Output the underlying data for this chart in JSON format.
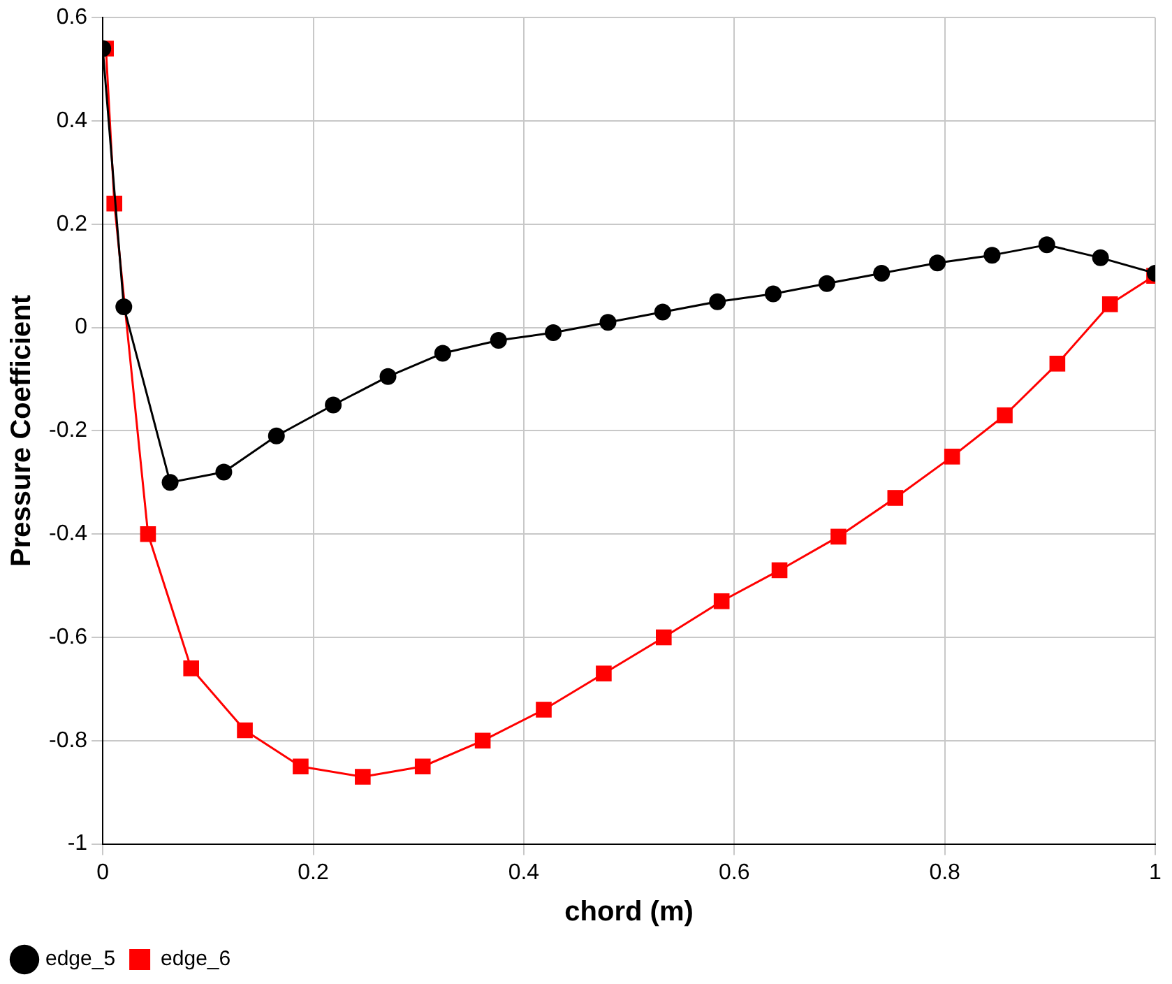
{
  "chart_data": {
    "type": "line",
    "xlabel": "chord (m)",
    "ylabel": "Pressure Coefficient",
    "xlim": [
      0,
      1
    ],
    "ylim": [
      -1,
      0.6
    ],
    "xticks": [
      0,
      0.2,
      0.4,
      0.6,
      0.8,
      1
    ],
    "yticks": [
      -1,
      -0.8,
      -0.6,
      -0.4,
      -0.2,
      0,
      0.2,
      0.4,
      0.6
    ],
    "grid": true,
    "legend": "bottom left",
    "series": [
      {
        "name": "edge_5",
        "color": "#000000",
        "marker": "circle",
        "x": [
          0,
          0.02,
          0.064,
          0.115,
          0.165,
          0.219,
          0.271,
          0.323,
          0.376,
          0.428,
          0.48,
          0.532,
          0.584,
          0.637,
          0.688,
          0.74,
          0.793,
          0.845,
          0.897,
          0.948,
          1.0
        ],
        "values": [
          0.54,
          0.04,
          -0.3,
          -0.28,
          -0.21,
          -0.15,
          -0.095,
          -0.05,
          -0.025,
          -0.01,
          0.01,
          0.03,
          0.05,
          0.065,
          0.085,
          0.105,
          0.125,
          0.14,
          0.16,
          0.135,
          0.105
        ]
      },
      {
        "name": "edge_6",
        "color": "#ff0000",
        "marker": "square",
        "x": [
          0.003,
          0.011,
          0.043,
          0.084,
          0.135,
          0.188,
          0.247,
          0.304,
          0.361,
          0.419,
          0.476,
          0.533,
          0.588,
          0.643,
          0.699,
          0.753,
          0.807,
          0.857,
          0.907,
          0.957,
          0.999
        ],
        "values": [
          0.54,
          0.24,
          -0.4,
          -0.66,
          -0.78,
          -0.85,
          -0.87,
          -0.85,
          -0.8,
          -0.74,
          -0.67,
          -0.6,
          -0.53,
          -0.47,
          -0.405,
          -0.33,
          -0.25,
          -0.17,
          -0.07,
          0.045,
          0.1
        ]
      }
    ]
  }
}
